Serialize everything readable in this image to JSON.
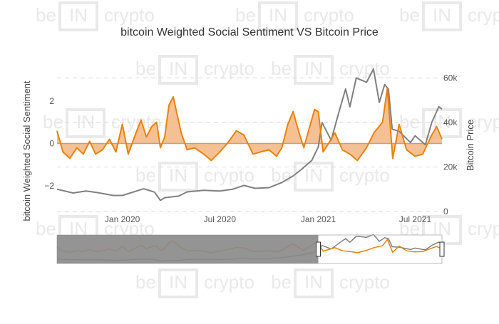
{
  "chart_data": {
    "type": "line",
    "title": "bitcoin Weighted Social Sentiment VS Bitcoin Price",
    "watermark": [
      "be",
      "IN",
      "crypto"
    ],
    "x_ticks": [
      "Jan 2020",
      "Jul 2020",
      "Jan 2021",
      "Jul 2021"
    ],
    "y_left": {
      "label": "bitcoin Weighted Social Sentiment",
      "ticks": [
        "−2",
        "0",
        "2"
      ],
      "tick_values": [
        -2,
        0,
        2
      ],
      "range": [
        -3.2,
        3.4
      ]
    },
    "y_right": {
      "label": "Bitcoin Price",
      "ticks": [
        "0",
        "20k",
        "40k",
        "60k"
      ],
      "tick_values": [
        0,
        20000,
        40000,
        60000
      ],
      "range": [
        0,
        63000
      ]
    },
    "x_range": [
      "2019-09-01",
      "2021-08-20"
    ],
    "colors": {
      "sentiment": "#e8820c",
      "sentiment_fill": "#f4b583",
      "price": "#808080",
      "zero_line": "#c2a07a",
      "selector_shade": "#888888"
    },
    "series": [
      {
        "name": "bitcoin Weighted Social Sentiment",
        "axis": "left",
        "x": [
          "2019-09-01",
          "2019-09-12",
          "2019-09-25",
          "2019-10-08",
          "2019-10-20",
          "2019-11-01",
          "2019-11-12",
          "2019-11-25",
          "2019-12-08",
          "2019-12-20",
          "2020-01-01",
          "2020-01-12",
          "2020-01-25",
          "2020-02-05",
          "2020-02-15",
          "2020-02-25",
          "2020-03-05",
          "2020-03-12",
          "2020-03-20",
          "2020-03-28",
          "2020-04-05",
          "2020-04-12",
          "2020-04-20",
          "2020-05-01",
          "2020-05-15",
          "2020-06-01",
          "2020-06-15",
          "2020-07-01",
          "2020-07-15",
          "2020-08-01",
          "2020-08-15",
          "2020-09-01",
          "2020-09-15",
          "2020-10-01",
          "2020-10-15",
          "2020-10-25",
          "2020-11-05",
          "2020-11-15",
          "2020-11-25",
          "2020-12-05",
          "2020-12-15",
          "2020-12-25",
          "2021-01-01",
          "2021-01-10",
          "2021-01-20",
          "2021-02-01",
          "2021-02-15",
          "2021-03-01",
          "2021-03-15",
          "2021-04-01",
          "2021-04-15",
          "2021-05-01",
          "2021-05-10",
          "2021-05-20",
          "2021-06-01",
          "2021-06-15",
          "2021-07-01",
          "2021-07-15",
          "2021-08-01",
          "2021-08-10",
          "2021-08-20"
        ],
        "values": [
          0.6,
          -0.4,
          -0.7,
          -0.2,
          -0.5,
          0.1,
          -0.5,
          -0.3,
          0.2,
          -0.4,
          0.9,
          -0.5,
          0.4,
          1.1,
          0.3,
          0.8,
          1.0,
          -0.2,
          0.3,
          1.8,
          2.2,
          1.4,
          0.5,
          -0.3,
          -0.2,
          -0.5,
          -0.8,
          -0.4,
          0.0,
          0.6,
          0.4,
          -0.5,
          -0.4,
          -0.3,
          -0.6,
          -0.2,
          0.9,
          1.5,
          0.6,
          -0.2,
          0.7,
          1.6,
          1.5,
          -0.4,
          0.0,
          0.5,
          -0.3,
          -0.5,
          -0.8,
          -0.2,
          0.5,
          1.0,
          2.6,
          -0.7,
          0.9,
          -0.3,
          -0.6,
          -0.5,
          0.4,
          0.8,
          0.2
        ]
      },
      {
        "name": "Bitcoin Price",
        "axis": "right",
        "x": [
          "2019-09-01",
          "2019-10-01",
          "2019-10-25",
          "2019-11-15",
          "2019-12-15",
          "2020-01-01",
          "2020-02-10",
          "2020-03-01",
          "2020-03-12",
          "2020-03-20",
          "2020-04-15",
          "2020-05-01",
          "2020-06-01",
          "2020-07-01",
          "2020-07-25",
          "2020-08-15",
          "2020-09-05",
          "2020-10-01",
          "2020-10-25",
          "2020-11-15",
          "2020-12-01",
          "2020-12-20",
          "2021-01-01",
          "2021-01-08",
          "2021-01-25",
          "2021-02-10",
          "2021-02-21",
          "2021-03-01",
          "2021-03-13",
          "2021-04-01",
          "2021-04-14",
          "2021-04-25",
          "2021-05-05",
          "2021-05-12",
          "2021-05-19",
          "2021-06-01",
          "2021-06-22",
          "2021-07-01",
          "2021-07-20",
          "2021-08-01",
          "2021-08-14",
          "2021-08-20"
        ],
        "values": [
          10000,
          8300,
          9200,
          8500,
          7200,
          7200,
          10200,
          8700,
          5000,
          6200,
          6900,
          8800,
          9500,
          9200,
          10000,
          11700,
          10400,
          10700,
          13000,
          16000,
          19000,
          23000,
          29000,
          40000,
          32000,
          46000,
          55000,
          47000,
          60000,
          58000,
          64000,
          49000,
          57000,
          55000,
          37000,
          36000,
          31000,
          34000,
          30000,
          40000,
          47000,
          46000
        ]
      }
    ],
    "range_selector": {
      "from": "2021-01-01",
      "to": "2021-08-20"
    }
  }
}
